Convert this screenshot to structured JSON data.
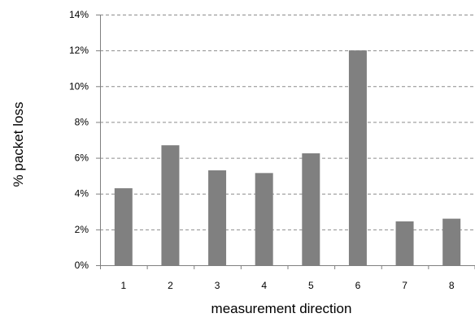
{
  "chart_data": {
    "type": "bar",
    "title": "",
    "xlabel": "measurement direction",
    "ylabel": "% packet loss",
    "categories": [
      "1",
      "2",
      "3",
      "4",
      "5",
      "6",
      "7",
      "8"
    ],
    "values": [
      4.3,
      6.7,
      5.3,
      5.15,
      6.25,
      12.0,
      2.45,
      2.6
    ],
    "ylim": [
      0,
      14
    ],
    "y_ticks": [
      0,
      2,
      4,
      6,
      8,
      10,
      12,
      14
    ],
    "y_tick_labels": [
      "0%",
      "2%",
      "4%",
      "6%",
      "8%",
      "10%",
      "12%",
      "14%"
    ],
    "grid": "horizontal dashed",
    "legend": "none",
    "colors": {
      "bar": "#808080",
      "grid": "#8c8c8c",
      "axis": "#7f7f7f"
    }
  }
}
